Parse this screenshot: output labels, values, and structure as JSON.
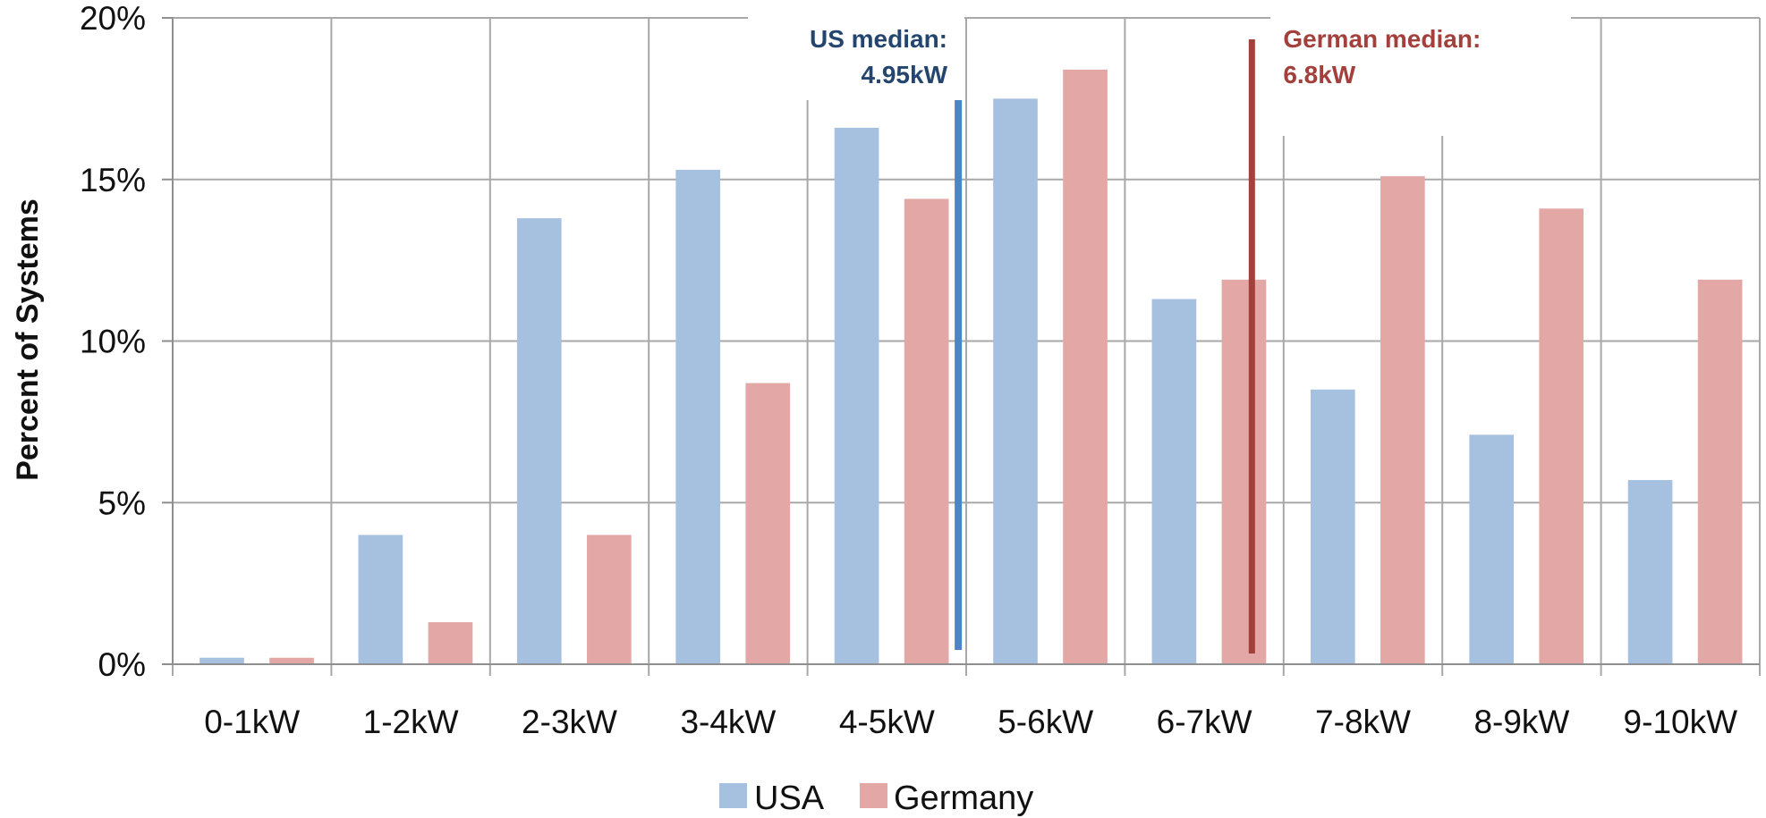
{
  "chart_data": {
    "type": "bar",
    "title": "",
    "xlabel": "",
    "ylabel": "Percent of Systems",
    "categories": [
      "0-1kW",
      "1-2kW",
      "2-3kW",
      "3-4kW",
      "4-5kW",
      "5-6kW",
      "6-7kW",
      "7-8kW",
      "8-9kW",
      "9-10kW"
    ],
    "series": [
      {
        "name": "USA",
        "color": "#A6C0E0",
        "values": [
          0.2,
          4.0,
          13.8,
          15.3,
          16.6,
          17.5,
          11.3,
          8.5,
          7.1,
          5.7
        ]
      },
      {
        "name": "Germany",
        "color": "#E3A8A6",
        "values": [
          0.2,
          1.3,
          4.0,
          8.7,
          14.4,
          18.4,
          11.9,
          15.1,
          14.1,
          11.9
        ]
      }
    ],
    "ylim": [
      0,
      20
    ],
    "yticks": [
      "0%",
      "5%",
      "10%",
      "15%",
      "20%"
    ],
    "ytick_values": [
      0,
      5,
      10,
      15,
      20
    ],
    "grid": true,
    "legend_position": "bottom",
    "annotations": [
      {
        "label_line1": "US median:",
        "label_line2": "4.95kW",
        "x_value": 4.95,
        "color": "#4A86C5",
        "text_color": "#24466E"
      },
      {
        "label_line1": "German median:",
        "label_line2": "6.8kW",
        "x_value": 6.8,
        "color": "#A3403C",
        "text_color": "#A3403C"
      }
    ]
  }
}
